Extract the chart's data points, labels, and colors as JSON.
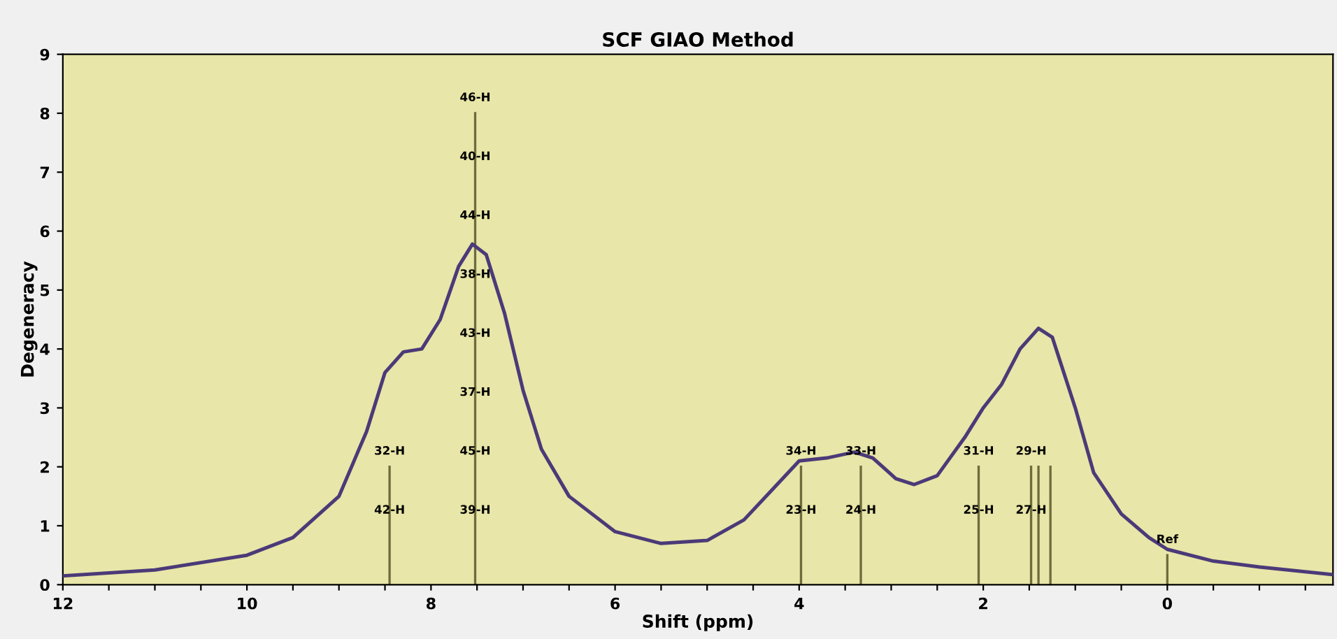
{
  "chart_data": {
    "type": "line",
    "title": "SCF GIAO Method",
    "xlabel": "Shift (ppm)",
    "ylabel": "Degeneracy",
    "xlim": [
      12,
      -1.8
    ],
    "ylim": [
      0,
      9
    ],
    "xticks": [
      12,
      {
        "value": 11.5,
        "label": null
      },
      {
        "value": 11,
        "label": null
      },
      {
        "value": 10.5,
        "label": null
      },
      10,
      {
        "value": 9.5,
        "label": null
      },
      {
        "value": 9,
        "label": null
      },
      {
        "value": 8.5,
        "label": null
      },
      8,
      {
        "value": 7.5,
        "label": null
      },
      {
        "value": 7,
        "label": null
      },
      {
        "value": 6.5,
        "label": null
      },
      6,
      {
        "value": 5.5,
        "label": null
      },
      {
        "value": 5,
        "label": null
      },
      {
        "value": 4.5,
        "label": null
      },
      4,
      {
        "value": 3.5,
        "label": null
      },
      {
        "value": 3,
        "label": null
      },
      {
        "value": 2.5,
        "label": null
      },
      2,
      {
        "value": 1.5,
        "label": null
      },
      {
        "value": 1,
        "label": null
      },
      {
        "value": 0.5,
        "label": null
      },
      0,
      {
        "value": -0.5,
        "label": null
      },
      {
        "value": -1,
        "label": null
      },
      {
        "value": -1.5,
        "label": null
      }
    ],
    "yticks": [
      0,
      1,
      2,
      3,
      4,
      5,
      6,
      7,
      8,
      9
    ],
    "grid": false,
    "legend": false,
    "series": [
      {
        "type": "step",
        "color": "#6e6c3c",
        "x": [
          8.45,
          8.45
        ],
        "values": [
          0,
          2
        ]
      },
      {
        "type": "step",
        "color": "#6e6c3c",
        "x": [
          7.52,
          7.52
        ],
        "values": [
          0,
          8
        ]
      },
      {
        "type": "step",
        "color": "#6e6c3c",
        "x": [
          3.98,
          3.98
        ],
        "values": [
          0,
          2
        ]
      },
      {
        "type": "step",
        "color": "#6e6c3c",
        "x": [
          3.33,
          3.33
        ],
        "values": [
          0,
          2
        ]
      },
      {
        "type": "step",
        "color": "#6e6c3c",
        "x": [
          2.05,
          2.05
        ],
        "values": [
          0,
          2
        ]
      },
      {
        "type": "step",
        "color": "#6e6c3c",
        "x": [
          1.48,
          1.48
        ],
        "values": [
          0,
          2
        ]
      },
      {
        "type": "step",
        "color": "#6e6c3c",
        "x": [
          1.4,
          1.4
        ],
        "values": [
          0,
          2
        ]
      },
      {
        "type": "step",
        "color": "#6e6c3c",
        "x": [
          1.27,
          1.27
        ],
        "values": [
          0,
          2
        ]
      },
      {
        "type": "step",
        "color": "#6e6c3c",
        "x": [
          0,
          0
        ],
        "values": [
          0,
          0.5
        ]
      },
      {
        "color": "#4b3a78",
        "x": [
          12,
          11,
          10,
          9.5,
          9,
          8.7,
          8.5,
          8.3,
          8.1,
          7.9,
          7.7,
          7.55,
          7.4,
          7.2,
          7.0,
          6.8,
          6.5,
          6.0,
          5.5,
          5.0,
          4.6,
          4.3,
          4.0,
          3.7,
          3.4,
          3.2,
          2.95,
          2.75,
          2.5,
          2.2,
          2.0,
          1.8,
          1.6,
          1.4,
          1.25,
          1.0,
          0.8,
          0.5,
          0.2,
          0,
          -0.5,
          -1,
          -1.8
        ],
        "values": [
          0.15,
          0.25,
          0.5,
          0.8,
          1.5,
          2.6,
          3.6,
          3.95,
          4.0,
          4.5,
          5.4,
          5.78,
          5.6,
          4.6,
          3.3,
          2.3,
          1.5,
          0.9,
          0.7,
          0.75,
          1.1,
          1.6,
          2.1,
          2.15,
          2.25,
          2.15,
          1.8,
          1.7,
          1.85,
          2.5,
          3.0,
          3.4,
          4.0,
          4.35,
          4.2,
          3.0,
          1.9,
          1.2,
          0.8,
          0.6,
          0.4,
          0.3,
          0.17
        ]
      }
    ],
    "annotations": [
      {
        "text": "46-H",
        "x": 7.52,
        "y": 8
      },
      {
        "text": "40-H",
        "x": 7.52,
        "y": 7
      },
      {
        "text": "44-H",
        "x": 7.52,
        "y": 6
      },
      {
        "text": "38-H",
        "x": 7.52,
        "y": 5
      },
      {
        "text": "43-H",
        "x": 7.52,
        "y": 4
      },
      {
        "text": "37-H",
        "x": 7.52,
        "y": 3
      },
      {
        "text": "45-H",
        "x": 7.52,
        "y": 2
      },
      {
        "text": "39-H",
        "x": 7.52,
        "y": 1
      },
      {
        "text": "32-H",
        "x": 8.45,
        "y": 2
      },
      {
        "text": "42-H",
        "x": 8.45,
        "y": 1
      },
      {
        "text": "34-H",
        "x": 3.98,
        "y": 2
      },
      {
        "text": "23-H",
        "x": 3.98,
        "y": 1
      },
      {
        "text": "33-H",
        "x": 3.33,
        "y": 2
      },
      {
        "text": "24-H",
        "x": 3.33,
        "y": 1
      },
      {
        "text": "31-H",
        "x": 2.05,
        "y": 2
      },
      {
        "text": "25-H",
        "x": 2.05,
        "y": 1
      },
      {
        "text": "29-H",
        "x": 1.48,
        "y": 2
      },
      {
        "text": "27-H",
        "x": 1.48,
        "y": 1
      },
      {
        "text": "Ref",
        "x": 0,
        "y": 0.5
      }
    ]
  }
}
